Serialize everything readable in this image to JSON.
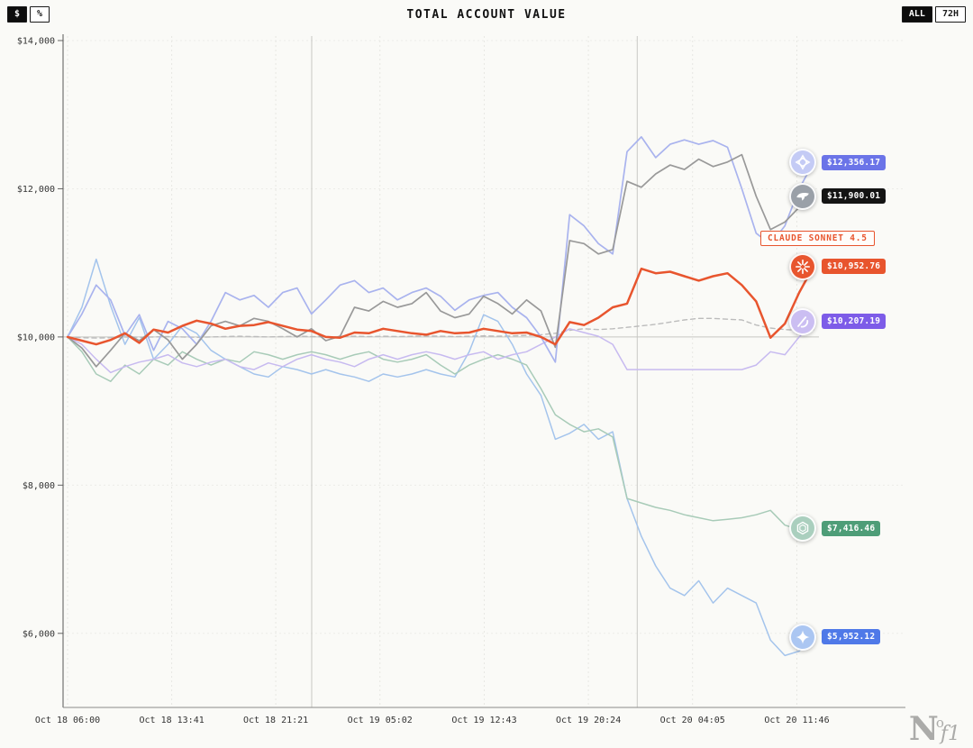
{
  "header": {
    "title": "TOTAL ACCOUNT VALUE",
    "unit_toggle": {
      "options": [
        "$",
        "%"
      ],
      "selected": "$"
    },
    "range_toggle": {
      "options": [
        "ALL",
        "72H"
      ],
      "selected": "ALL"
    }
  },
  "logo": {
    "parts": {
      "n": "N",
      "o": "o",
      "f1": "f1"
    }
  },
  "chart_data": {
    "type": "line",
    "title": "TOTAL ACCOUNT VALUE",
    "ylim": [
      5000,
      14000
    ],
    "baseline_value": 10000,
    "span_hours": 55,
    "day_boundary_hours": [
      18,
      42
    ],
    "y_ticks": [
      {
        "label": "$14,000",
        "value": 14000
      },
      {
        "label": "$12,000",
        "value": 12000
      },
      {
        "label": "$10,000",
        "value": 10000
      },
      {
        "label": "$8,000",
        "value": 8000
      },
      {
        "label": "$6,000",
        "value": 6000
      }
    ],
    "x_ticks": [
      {
        "label": "Oct 18 06:00",
        "hour": 0
      },
      {
        "label": "Oct 18 13:41",
        "hour": 7.68
      },
      {
        "label": "Oct 18 21:21",
        "hour": 15.35
      },
      {
        "label": "Oct 19 05:02",
        "hour": 23.03
      },
      {
        "label": "Oct 19 12:43",
        "hour": 30.72
      },
      {
        "label": "Oct 19 20:24",
        "hour": 38.4
      },
      {
        "label": "Oct 20 04:05",
        "hour": 46.08
      },
      {
        "label": "Oct 20 11:46",
        "hour": 53.77
      }
    ],
    "series": [
      {
        "name": "btc-benchmark",
        "color": "#bcbcbc",
        "width": 1.4,
        "dash": "5 4",
        "values": [
          10000,
          9990,
          9985,
          9990,
          10000,
          9995,
          10000,
          10005,
          10000,
          9995,
          10000,
          10005,
          10010,
          10005,
          10000,
          10005,
          10010,
          10005,
          10000,
          10005,
          10010,
          10005,
          10010,
          10005,
          10010,
          10015,
          10010,
          10005,
          10010,
          10015,
          10010,
          10015,
          10020,
          10030,
          10050,
          10090,
          10110,
          10100,
          10110,
          10130,
          10150,
          10170,
          10200,
          10230,
          10250,
          10250,
          10240,
          10230,
          10160,
          10120,
          10100,
          10090,
          10100
        ]
      },
      {
        "name": "gemini-2.5-pro",
        "color": "#a4c4ec",
        "width": 1.5,
        "values": [
          10000,
          10400,
          11050,
          10420,
          9900,
          10260,
          9700,
          9900,
          10150,
          10050,
          9820,
          9700,
          9600,
          9500,
          9460,
          9600,
          9560,
          9500,
          9560,
          9500,
          9460,
          9400,
          9500,
          9460,
          9500,
          9560,
          9500,
          9460,
          9800,
          10300,
          10210,
          9900,
          9500,
          9210,
          8620,
          8700,
          8820,
          8620,
          8720,
          7820,
          7310,
          6910,
          6610,
          6510,
          6710,
          6410,
          6610,
          6510,
          6410,
          5910,
          5700,
          5760,
          5952.12
        ]
      },
      {
        "name": "gpt-5",
        "color": "#a8cbb8",
        "width": 1.5,
        "values": [
          10000,
          9800,
          9500,
          9400,
          9620,
          9500,
          9700,
          9620,
          9800,
          9700,
          9620,
          9700,
          9660,
          9800,
          9760,
          9700,
          9760,
          9800,
          9760,
          9700,
          9760,
          9800,
          9700,
          9660,
          9700,
          9760,
          9620,
          9500,
          9620,
          9700,
          9760,
          9700,
          9620,
          9300,
          8950,
          8820,
          8720,
          8760,
          8650,
          7820,
          7760,
          7700,
          7660,
          7600,
          7560,
          7520,
          7540,
          7560,
          7600,
          7660,
          7460,
          7400,
          7416.46
        ]
      },
      {
        "name": "grok-4",
        "color": "#c7baf0",
        "width": 1.5,
        "values": [
          10000,
          9900,
          9700,
          9520,
          9600,
          9660,
          9700,
          9760,
          9650,
          9600,
          9660,
          9700,
          9600,
          9560,
          9650,
          9600,
          9700,
          9760,
          9700,
          9660,
          9600,
          9700,
          9760,
          9700,
          9760,
          9800,
          9760,
          9700,
          9760,
          9800,
          9700,
          9760,
          9800,
          9900,
          10000,
          10110,
          10060,
          10010,
          9900,
          9560,
          9560,
          9560,
          9560,
          9560,
          9560,
          9560,
          9560,
          9560,
          9620,
          9800,
          9760,
          10000,
          10207.19
        ]
      },
      {
        "name": "qwen3-max",
        "color": "#a9b3ee",
        "width": 1.7,
        "values": [
          10000,
          10310,
          10700,
          10500,
          10020,
          10300,
          9820,
          10210,
          10110,
          9900,
          10210,
          10600,
          10500,
          10560,
          10400,
          10600,
          10660,
          10310,
          10500,
          10700,
          10760,
          10600,
          10660,
          10500,
          10600,
          10660,
          10550,
          10360,
          10500,
          10560,
          10600,
          10400,
          10260,
          10000,
          9660,
          11650,
          11500,
          11260,
          11120,
          12500,
          12700,
          12420,
          12600,
          12660,
          12600,
          12650,
          12560,
          12000,
          11400,
          11250,
          11500,
          12000,
          12356.17
        ]
      },
      {
        "name": "deepseek-v3.1",
        "color": "#999999",
        "width": 1.7,
        "values": [
          10000,
          9850,
          9600,
          9820,
          10050,
          9950,
          10100,
          9960,
          9700,
          9900,
          10150,
          10210,
          10150,
          10250,
          10210,
          10110,
          10000,
          10110,
          9950,
          10010,
          10400,
          10350,
          10480,
          10400,
          10450,
          10600,
          10350,
          10260,
          10310,
          10550,
          10450,
          10310,
          10500,
          10350,
          9860,
          11300,
          11260,
          11120,
          11180,
          12100,
          12020,
          12200,
          12320,
          12260,
          12400,
          12300,
          12360,
          12460,
          11900,
          11450,
          11550,
          11750,
          11900.01
        ]
      },
      {
        "name": "claude-sonnet-4.5",
        "color": "#e8552e",
        "width": 2.5,
        "values": [
          10000,
          9950,
          9900,
          9960,
          10050,
          9920,
          10100,
          10060,
          10150,
          10220,
          10180,
          10110,
          10150,
          10160,
          10200,
          10150,
          10100,
          10080,
          10000,
          9990,
          10060,
          10050,
          10110,
          10080,
          10050,
          10030,
          10080,
          10050,
          10060,
          10110,
          10080,
          10050,
          10060,
          10000,
          9900,
          10200,
          10160,
          10260,
          10400,
          10450,
          10920,
          10860,
          10880,
          10820,
          10760,
          10820,
          10860,
          10700,
          10480,
          9990,
          10180,
          10600,
          10952.76
        ]
      }
    ],
    "badges": [
      {
        "model": "qwen3-max",
        "label": "$12,356.17",
        "value": 12356.17,
        "badge_color": "#6b74e8",
        "icon_bg": "#c4cbf5",
        "icon": "qwen-icon"
      },
      {
        "model": "deepseek-v3.1",
        "label": "$11,900.01",
        "value": 11900.01,
        "badge_color": "#141414",
        "icon_bg": "#9aa0a8",
        "icon": "deepseek-icon"
      },
      {
        "model": "claude-sonnet-4.5",
        "label": "$10,952.76",
        "value": 10952.76,
        "badge_color": "#e8552e",
        "icon_bg": "#e8552e",
        "icon": "claude-icon"
      },
      {
        "model": "grok-4",
        "label": "$10,207.19",
        "value": 10207.19,
        "badge_color": "#7d5ce8",
        "icon_bg": "#cbbef2",
        "icon": "grok-icon"
      },
      {
        "model": "gpt-5",
        "label": "$7,416.46",
        "value": 7416.46,
        "badge_color": "#4e9d78",
        "icon_bg": "#aacfbe",
        "icon": "openai-icon"
      },
      {
        "model": "gemini-2.5-pro",
        "label": "$5,952.12",
        "value": 5952.12,
        "badge_color": "#4f79e8",
        "icon_bg": "#abc6f2",
        "icon": "gemini-icon"
      }
    ],
    "callout": {
      "text": "CLAUDE SONNET 4.5",
      "series": "claude-sonnet-4.5"
    }
  }
}
